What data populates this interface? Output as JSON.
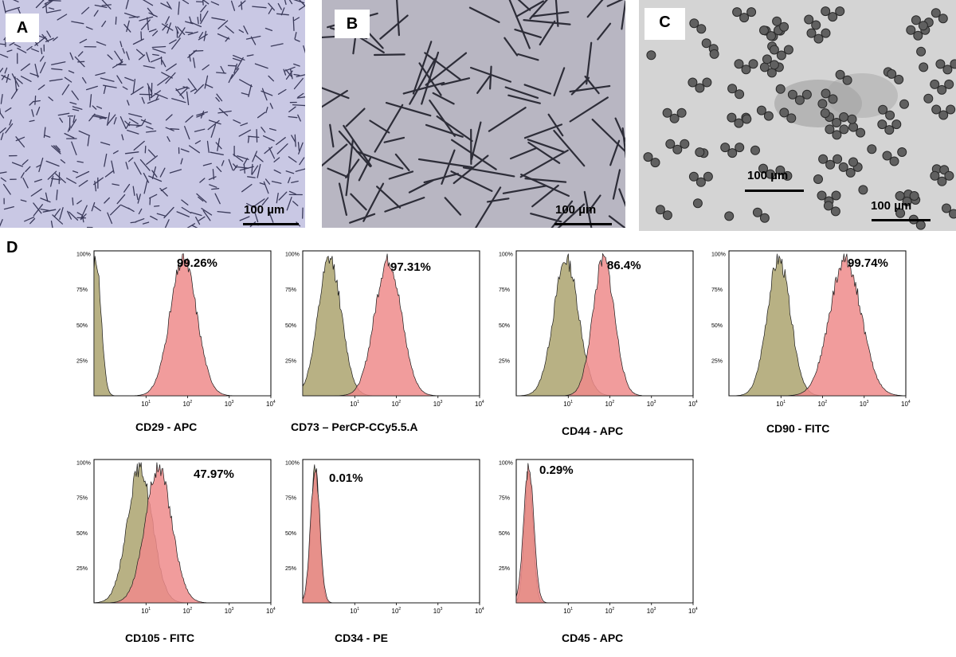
{
  "panels_top": [
    {
      "letter": "A",
      "scale": "100 µm"
    },
    {
      "letter": "B",
      "scale": "100 µm"
    },
    {
      "letter": "C",
      "scale_inner": "100 µm",
      "scale": "100 µm"
    }
  ],
  "panel_d_letter": "D",
  "yticks": [
    "100%",
    "75%",
    "50%",
    "25%"
  ],
  "xtick_base": "10",
  "xtick_exps": [
    "1",
    "2",
    "3",
    "4"
  ],
  "colors": {
    "control": "#b8b184",
    "marker": "#ef8b8b",
    "overlap": "#b5573f",
    "stroke": "#1a1a1a"
  },
  "chart_data": [
    {
      "type": "area",
      "xlabel": "CD29 - APC",
      "percent": "99.26%",
      "x_scale": "log",
      "xlim": [
        1,
        10000
      ],
      "control_peak_log": -0.2,
      "control_width": 0.12,
      "marker_peak_log": 1.9,
      "marker_width": 0.32
    },
    {
      "type": "area",
      "xlabel": "CD73 – PerCP-CCy5.5.A",
      "percent": "97.31%",
      "x_scale": "log",
      "xlim": [
        1,
        10000
      ],
      "control_peak_log": 0.4,
      "control_width": 0.28,
      "marker_peak_log": 1.8,
      "marker_width": 0.32
    },
    {
      "type": "area",
      "xlabel": "CD44 - APC",
      "percent": "86.4%",
      "x_scale": "log",
      "xlim": [
        1,
        10000
      ],
      "control_peak_log": 0.95,
      "control_width": 0.3,
      "marker_peak_log": 1.85,
      "marker_width": 0.26
    },
    {
      "type": "area",
      "xlabel": "CD90 - FITC",
      "percent": "99.74%",
      "x_scale": "log",
      "xlim": [
        1,
        10000
      ],
      "control_peak_log": 0.95,
      "control_width": 0.28,
      "marker_peak_log": 2.55,
      "marker_width": 0.38
    },
    {
      "type": "area",
      "xlabel": "CD105 - FITC",
      "percent": "47.97%",
      "x_scale": "log",
      "xlim": [
        1,
        10000
      ],
      "control_peak_log": 0.85,
      "control_width": 0.3,
      "marker_peak_log": 1.3,
      "marker_width": 0.32
    },
    {
      "type": "area",
      "xlabel": "CD34 - PE",
      "percent": "0.01%",
      "x_scale": "log",
      "xlim": [
        1,
        10000
      ],
      "control_peak_log": 0.05,
      "control_width": 0.1,
      "marker_peak_log": 0.05,
      "marker_width": 0.11
    },
    {
      "type": "area",
      "xlabel": "CD45 - APC",
      "percent": "0.29%",
      "x_scale": "log",
      "xlim": [
        1,
        10000
      ],
      "control_peak_log": 0.05,
      "control_width": 0.1,
      "marker_peak_log": 0.05,
      "marker_width": 0.12
    }
  ]
}
